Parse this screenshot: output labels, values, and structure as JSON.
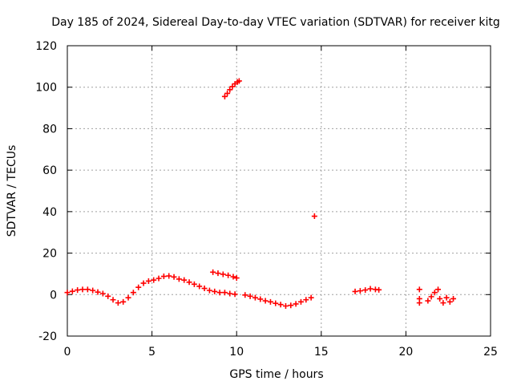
{
  "chart_data": {
    "type": "scatter",
    "title": "Day 185 of 2024, Sidereal Day-to-day VTEC variation (SDTVAR) for receiver kitg",
    "xlabel": "GPS time / hours",
    "ylabel": "SDTVAR / TECUs",
    "xlim": [
      0,
      25
    ],
    "ylim": [
      -20,
      120
    ],
    "xticks": [
      0,
      5,
      10,
      15,
      20,
      25
    ],
    "yticks": [
      -20,
      0,
      20,
      40,
      60,
      80,
      100,
      120
    ],
    "grid": true,
    "marker": "+",
    "color": "#ff0000",
    "series": [
      {
        "name": "SDTVAR",
        "points": [
          [
            0.0,
            1.0
          ],
          [
            0.3,
            1.6
          ],
          [
            0.6,
            2.2
          ],
          [
            0.9,
            2.5
          ],
          [
            1.2,
            2.5
          ],
          [
            1.5,
            2.0
          ],
          [
            1.8,
            1.2
          ],
          [
            2.1,
            0.5
          ],
          [
            2.4,
            -0.8
          ],
          [
            2.7,
            -2.5
          ],
          [
            3.0,
            -4.0
          ],
          [
            3.3,
            -3.5
          ],
          [
            3.6,
            -1.5
          ],
          [
            3.9,
            1.0
          ],
          [
            4.2,
            3.5
          ],
          [
            4.5,
            5.5
          ],
          [
            4.8,
            6.5
          ],
          [
            5.1,
            7.0
          ],
          [
            5.4,
            7.8
          ],
          [
            5.7,
            8.8
          ],
          [
            6.0,
            9.0
          ],
          [
            6.3,
            8.5
          ],
          [
            6.6,
            7.5
          ],
          [
            6.9,
            7.0
          ],
          [
            7.2,
            6.0
          ],
          [
            7.5,
            5.0
          ],
          [
            7.8,
            4.0
          ],
          [
            8.1,
            3.0
          ],
          [
            8.4,
            2.0
          ],
          [
            8.7,
            1.5
          ],
          [
            9.0,
            1.0
          ],
          [
            9.3,
            1.0
          ],
          [
            9.6,
            0.5
          ],
          [
            9.9,
            0.2
          ],
          [
            8.6,
            10.8
          ],
          [
            8.9,
            10.3
          ],
          [
            9.2,
            9.8
          ],
          [
            9.5,
            9.3
          ],
          [
            9.8,
            8.6
          ],
          [
            10.0,
            8.0
          ],
          [
            9.3,
            95.5
          ],
          [
            9.45,
            97.0
          ],
          [
            9.6,
            98.8
          ],
          [
            9.75,
            100.3
          ],
          [
            9.9,
            101.6
          ],
          [
            10.05,
            102.5
          ],
          [
            10.15,
            103.0
          ],
          [
            10.5,
            -0.2
          ],
          [
            10.8,
            -0.8
          ],
          [
            11.1,
            -1.5
          ],
          [
            11.4,
            -2.2
          ],
          [
            11.7,
            -3.0
          ],
          [
            12.0,
            -3.5
          ],
          [
            12.3,
            -4.2
          ],
          [
            12.6,
            -4.8
          ],
          [
            12.9,
            -5.5
          ],
          [
            13.2,
            -5.2
          ],
          [
            13.5,
            -4.5
          ],
          [
            13.8,
            -3.5
          ],
          [
            14.1,
            -2.5
          ],
          [
            14.4,
            -1.5
          ],
          [
            14.6,
            37.8
          ],
          [
            17.0,
            1.5
          ],
          [
            17.3,
            1.8
          ],
          [
            17.6,
            2.2
          ],
          [
            17.9,
            2.8
          ],
          [
            18.2,
            2.5
          ],
          [
            18.4,
            2.3
          ],
          [
            20.8,
            2.5
          ],
          [
            20.8,
            -2.0
          ],
          [
            20.8,
            -4.0
          ],
          [
            21.3,
            -3.0
          ],
          [
            21.5,
            -1.0
          ],
          [
            21.7,
            1.0
          ],
          [
            21.9,
            2.5
          ],
          [
            22.0,
            -2.0
          ],
          [
            22.2,
            -4.0
          ],
          [
            22.4,
            -1.5
          ],
          [
            22.6,
            -3.5
          ],
          [
            22.8,
            -2.0
          ]
        ]
      }
    ]
  }
}
